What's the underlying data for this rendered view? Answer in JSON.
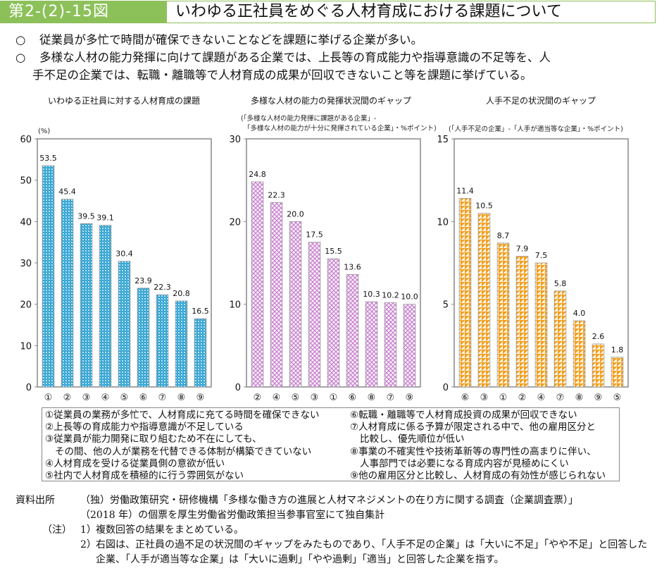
{
  "header": {
    "figure_number": "第2-(2)-15図",
    "title": "いわゆる正社員をめぐる人材育成における課題について"
  },
  "summary": {
    "bullet": "○",
    "lines": [
      "従業員が多忙で時間が確保できないことなどを課題に挙げる企業が多い。",
      "多様な人材の能力発揮に向けて課題がある企業では、上長等の育成能力や指導意識の不足等を、人"
    ],
    "continuation": "手不足の企業では、転職・離職等で人材育成の成果が回収できないこと等を課題に挙げている。"
  },
  "colors": {
    "header_green": "#8cc15a",
    "chart1_bar": "#2a9fd0",
    "chart2_bar": "#c77fcf",
    "chart3_bar": "#f5a020"
  },
  "chart_data": [
    {
      "type": "bar",
      "title": "いわゆる正社員に対する人材育成の課題",
      "subtitle": "",
      "ylabel": "(%)",
      "xlabel": "",
      "categories": [
        "①",
        "②",
        "③",
        "④",
        "⑤",
        "⑥",
        "⑦",
        "⑧",
        "⑨"
      ],
      "values": [
        53.5,
        45.4,
        39.5,
        39.1,
        30.4,
        23.9,
        22.3,
        20.8,
        16.5
      ],
      "ylim": [
        0,
        60
      ],
      "yticks": [
        0,
        10,
        20,
        30,
        40,
        50,
        60
      ],
      "grid": false,
      "color": "#2a9fd0"
    },
    {
      "type": "bar",
      "title": "多様な人材の能力の発揮状況間のギャップ",
      "subtitle": [
        "(「多様な人材の能力発揮に課題がある企業」-",
        "「多様な人材の能力が十分に発揮されている企業」・%ポイント)"
      ],
      "ylabel": "",
      "xlabel": "",
      "categories": [
        "②",
        "④",
        "⑤",
        "③",
        "①",
        "⑥",
        "⑧",
        "⑦",
        "⑨"
      ],
      "values": [
        24.8,
        22.3,
        20.0,
        17.5,
        15.5,
        13.6,
        10.3,
        10.2,
        10.0
      ],
      "ylim": [
        0,
        30
      ],
      "yticks": [
        0,
        10,
        20,
        30
      ],
      "grid": false,
      "color": "#c77fcf"
    },
    {
      "type": "bar",
      "title": "人手不足の状況間のギャップ",
      "subtitle": [
        "(「人手不足の企業」-「人手が適当等な企業」・%ポイント)"
      ],
      "ylabel": "",
      "xlabel": "",
      "categories": [
        "⑥",
        "③",
        "①",
        "②",
        "④",
        "⑦",
        "⑧",
        "⑨",
        "⑤"
      ],
      "values": [
        11.4,
        10.5,
        8.7,
        7.9,
        7.5,
        5.8,
        4.0,
        2.6,
        1.8
      ],
      "ylim": [
        0,
        15
      ],
      "yticks": [
        0,
        5,
        10,
        15
      ],
      "grid": false,
      "color": "#f5a020"
    }
  ],
  "legend": {
    "left": [
      {
        "text": "①従業員の業務が多忙で、人材育成に充てる時間を確保できない",
        "indent": false
      },
      {
        "text": "②上長等の育成能力や指導意識が不足している",
        "indent": false
      },
      {
        "text": "③従業員が能力開発に取り組むため不在にしても、",
        "indent": false
      },
      {
        "text": "その間、他の人が業務を代替できる体制が構築できていない",
        "indent": true
      },
      {
        "text": "④人材育成を受ける従業員側の意欲が低い",
        "indent": false
      },
      {
        "text": "⑤社内で人材育成を積極的に行う雰囲気がない",
        "indent": false
      }
    ],
    "right": [
      {
        "text": "⑥転職・離職等で人材育成投資の成果が回収できない",
        "indent": false
      },
      {
        "text": "⑦人材育成に係る予算が限定される中で、他の雇用区分と",
        "indent": false
      },
      {
        "text": "比較し、優先順位が低い",
        "indent": true
      },
      {
        "text": "⑧事業の不確実性や技術革新等の専門性の高まりに伴い、",
        "indent": false
      },
      {
        "text": "人事部門では必要になる育成内容が見極めにくい",
        "indent": true
      },
      {
        "text": "⑨他の雇用区分と比較し、人材育成の有効性が感じられない",
        "indent": false
      }
    ]
  },
  "notes": {
    "source_label": "資料出所",
    "source_lines": [
      "（独）労働政策研究・研修機構「多様な働き方の進展と人材マネジメントの在り方に関する調査（企業調査票）」",
      "（2018 年）の個票を厚生労働省労働政策担当参事官室にて独自集計"
    ],
    "note_label": "（注）",
    "items": [
      {
        "num": "1）",
        "text": "複数回答の結果をまとめている。"
      },
      {
        "num": "2）",
        "text": "右図は、正社員の過不足の状況間のギャップをみたものであり、「人手不足の企業」は「大いに不足」「やや不足」と回答した企業、「人手が適当等な企業」は「大いに過剰」「やや過剰」「適当」と回答した企業を指す。"
      }
    ]
  }
}
